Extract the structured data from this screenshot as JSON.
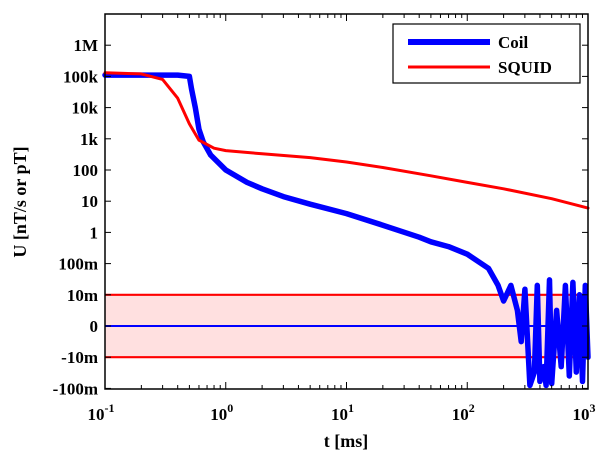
{
  "chart_data": {
    "type": "line",
    "xlabel": "t [ms]",
    "ylabel": "U [nT/s or pT]",
    "x_scale": "log",
    "xlim": [
      0.1,
      1000
    ],
    "x_ticks": [
      {
        "base": "10",
        "exp": "-1",
        "value": 0.1
      },
      {
        "base": "10",
        "exp": "0",
        "value": 1
      },
      {
        "base": "10",
        "exp": "1",
        "value": 10
      },
      {
        "base": "10",
        "exp": "2",
        "value": 100
      },
      {
        "base": "10",
        "exp": "3",
        "value": 1000
      }
    ],
    "y_scale": "symmetric-log (linear between -10m and 10m)",
    "y_ticks": [
      "-100m",
      "-10m",
      "0",
      "10m",
      "100m",
      "1",
      "10",
      "100",
      "1k",
      "10k",
      "100k",
      "1M"
    ],
    "grid": false,
    "legend_position": "top-right",
    "noise_band": {
      "lower": "-10m",
      "upper": "10m",
      "fill_color": "#ffe0e0",
      "line_color": "#ff0000"
    },
    "zero_line_color": "#0000ff",
    "series": [
      {
        "name": "Coil",
        "color": "#0000ff",
        "points": [
          [
            0.1,
            110000
          ],
          [
            0.2,
            110000
          ],
          [
            0.4,
            110000
          ],
          [
            0.5,
            100000
          ],
          [
            0.52,
            40000
          ],
          [
            0.56,
            10000
          ],
          [
            0.6,
            2000
          ],
          [
            0.65,
            800
          ],
          [
            0.75,
            300
          ],
          [
            1.0,
            100
          ],
          [
            1.5,
            40
          ],
          [
            2,
            25
          ],
          [
            3,
            14
          ],
          [
            5,
            8
          ],
          [
            10,
            4
          ],
          [
            20,
            1.7
          ],
          [
            40,
            0.7
          ],
          [
            50,
            0.5
          ],
          [
            70,
            0.35
          ],
          [
            100,
            0.2
          ],
          [
            150,
            0.07
          ],
          [
            180,
            0.02
          ],
          [
            200,
            0.008
          ],
          [
            230,
            0.02
          ],
          [
            260,
            0.005
          ],
          [
            280,
            -0.005
          ],
          [
            300,
            0.015
          ],
          [
            330,
            -0.08
          ],
          [
            360,
            -0.03
          ],
          [
            380,
            0.02
          ],
          [
            400,
            -0.06
          ],
          [
            430,
            -0.02
          ],
          [
            450,
            -0.08
          ],
          [
            480,
            0.03
          ],
          [
            500,
            -0.07
          ],
          [
            550,
            0.005
          ],
          [
            600,
            -0.02
          ],
          [
            650,
            0.02
          ],
          [
            700,
            -0.04
          ],
          [
            750,
            0.025
          ],
          [
            800,
            -0.03
          ],
          [
            850,
            0.01
          ],
          [
            900,
            -0.06
          ],
          [
            950,
            0.02
          ],
          [
            1000,
            -0.01
          ]
        ]
      },
      {
        "name": "SQUID",
        "color": "#ff0000",
        "points": [
          [
            0.1,
            130000
          ],
          [
            0.2,
            120000
          ],
          [
            0.3,
            80000
          ],
          [
            0.4,
            20000
          ],
          [
            0.5,
            3000
          ],
          [
            0.6,
            900
          ],
          [
            0.8,
            500
          ],
          [
            1.0,
            420
          ],
          [
            2,
            330
          ],
          [
            5,
            250
          ],
          [
            10,
            180
          ],
          [
            20,
            120
          ],
          [
            50,
            65
          ],
          [
            100,
            40
          ],
          [
            200,
            25
          ],
          [
            500,
            12
          ],
          [
            1000,
            6
          ]
        ]
      }
    ]
  }
}
